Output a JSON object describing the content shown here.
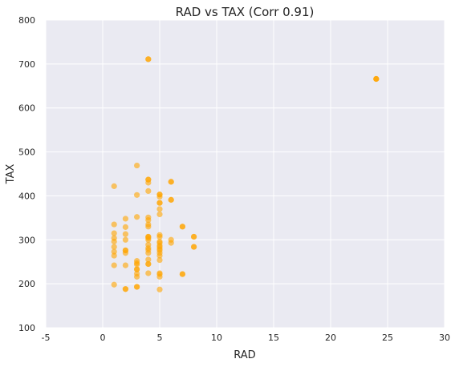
{
  "colors": {
    "background": "#eaeaf2",
    "point": "#ffa500",
    "grid": "#ffffff"
  },
  "chart_data": {
    "type": "scatter",
    "title": "RAD vs TAX   (Corr 0.91)",
    "xlabel": "RAD",
    "ylabel": "TAX",
    "xlim": [
      -5,
      30
    ],
    "ylim": [
      100,
      800
    ],
    "xticks": [
      -5,
      0,
      5,
      10,
      15,
      20,
      25,
      30
    ],
    "yticks": [
      100,
      200,
      300,
      400,
      500,
      600,
      700,
      800
    ],
    "grid": true,
    "point_alpha": 0.6,
    "points": [
      {
        "x": 1,
        "y": 198
      },
      {
        "x": 1,
        "y": 242
      },
      {
        "x": 1,
        "y": 264
      },
      {
        "x": 1,
        "y": 273
      },
      {
        "x": 1,
        "y": 284
      },
      {
        "x": 1,
        "y": 296
      },
      {
        "x": 1,
        "y": 304
      },
      {
        "x": 1,
        "y": 315
      },
      {
        "x": 1,
        "y": 335
      },
      {
        "x": 1,
        "y": 422
      },
      {
        "x": 2,
        "y": 188
      },
      {
        "x": 2,
        "y": 188
      },
      {
        "x": 2,
        "y": 242
      },
      {
        "x": 2,
        "y": 270
      },
      {
        "x": 2,
        "y": 276
      },
      {
        "x": 2,
        "y": 276
      },
      {
        "x": 2,
        "y": 300
      },
      {
        "x": 2,
        "y": 313
      },
      {
        "x": 2,
        "y": 329
      },
      {
        "x": 2,
        "y": 348
      },
      {
        "x": 3,
        "y": 193
      },
      {
        "x": 3,
        "y": 193
      },
      {
        "x": 3,
        "y": 216
      },
      {
        "x": 3,
        "y": 223
      },
      {
        "x": 3,
        "y": 233
      },
      {
        "x": 3,
        "y": 233
      },
      {
        "x": 3,
        "y": 244
      },
      {
        "x": 3,
        "y": 247
      },
      {
        "x": 3,
        "y": 252
      },
      {
        "x": 3,
        "y": 352
      },
      {
        "x": 3,
        "y": 402
      },
      {
        "x": 3,
        "y": 469
      },
      {
        "x": 4,
        "y": 224
      },
      {
        "x": 4,
        "y": 245
      },
      {
        "x": 4,
        "y": 245
      },
      {
        "x": 4,
        "y": 255
      },
      {
        "x": 4,
        "y": 270
      },
      {
        "x": 4,
        "y": 277
      },
      {
        "x": 4,
        "y": 281
      },
      {
        "x": 4,
        "y": 289
      },
      {
        "x": 4,
        "y": 300
      },
      {
        "x": 4,
        "y": 304
      },
      {
        "x": 4,
        "y": 307
      },
      {
        "x": 4,
        "y": 307
      },
      {
        "x": 4,
        "y": 330
      },
      {
        "x": 4,
        "y": 335
      },
      {
        "x": 4,
        "y": 345
      },
      {
        "x": 4,
        "y": 351
      },
      {
        "x": 4,
        "y": 411
      },
      {
        "x": 4,
        "y": 430
      },
      {
        "x": 4,
        "y": 437
      },
      {
        "x": 4,
        "y": 437
      },
      {
        "x": 4,
        "y": 711
      },
      {
        "x": 4,
        "y": 711
      },
      {
        "x": 5,
        "y": 187
      },
      {
        "x": 5,
        "y": 216
      },
      {
        "x": 5,
        "y": 222
      },
      {
        "x": 5,
        "y": 224
      },
      {
        "x": 5,
        "y": 254
      },
      {
        "x": 5,
        "y": 264
      },
      {
        "x": 5,
        "y": 270
      },
      {
        "x": 5,
        "y": 276
      },
      {
        "x": 5,
        "y": 279
      },
      {
        "x": 5,
        "y": 284
      },
      {
        "x": 5,
        "y": 287
      },
      {
        "x": 5,
        "y": 293
      },
      {
        "x": 5,
        "y": 296
      },
      {
        "x": 5,
        "y": 307
      },
      {
        "x": 5,
        "y": 311
      },
      {
        "x": 5,
        "y": 358
      },
      {
        "x": 5,
        "y": 370
      },
      {
        "x": 5,
        "y": 384
      },
      {
        "x": 5,
        "y": 384
      },
      {
        "x": 5,
        "y": 398
      },
      {
        "x": 5,
        "y": 403
      },
      {
        "x": 5,
        "y": 403
      },
      {
        "x": 6,
        "y": 293
      },
      {
        "x": 6,
        "y": 300
      },
      {
        "x": 6,
        "y": 391
      },
      {
        "x": 6,
        "y": 391
      },
      {
        "x": 6,
        "y": 432
      },
      {
        "x": 6,
        "y": 432
      },
      {
        "x": 7,
        "y": 222
      },
      {
        "x": 7,
        "y": 222
      },
      {
        "x": 7,
        "y": 330
      },
      {
        "x": 7,
        "y": 330
      },
      {
        "x": 8,
        "y": 284
      },
      {
        "x": 8,
        "y": 284
      },
      {
        "x": 8,
        "y": 307
      },
      {
        "x": 8,
        "y": 307
      },
      {
        "x": 24,
        "y": 666
      },
      {
        "x": 24,
        "y": 666
      },
      {
        "x": 24,
        "y": 666
      }
    ]
  }
}
